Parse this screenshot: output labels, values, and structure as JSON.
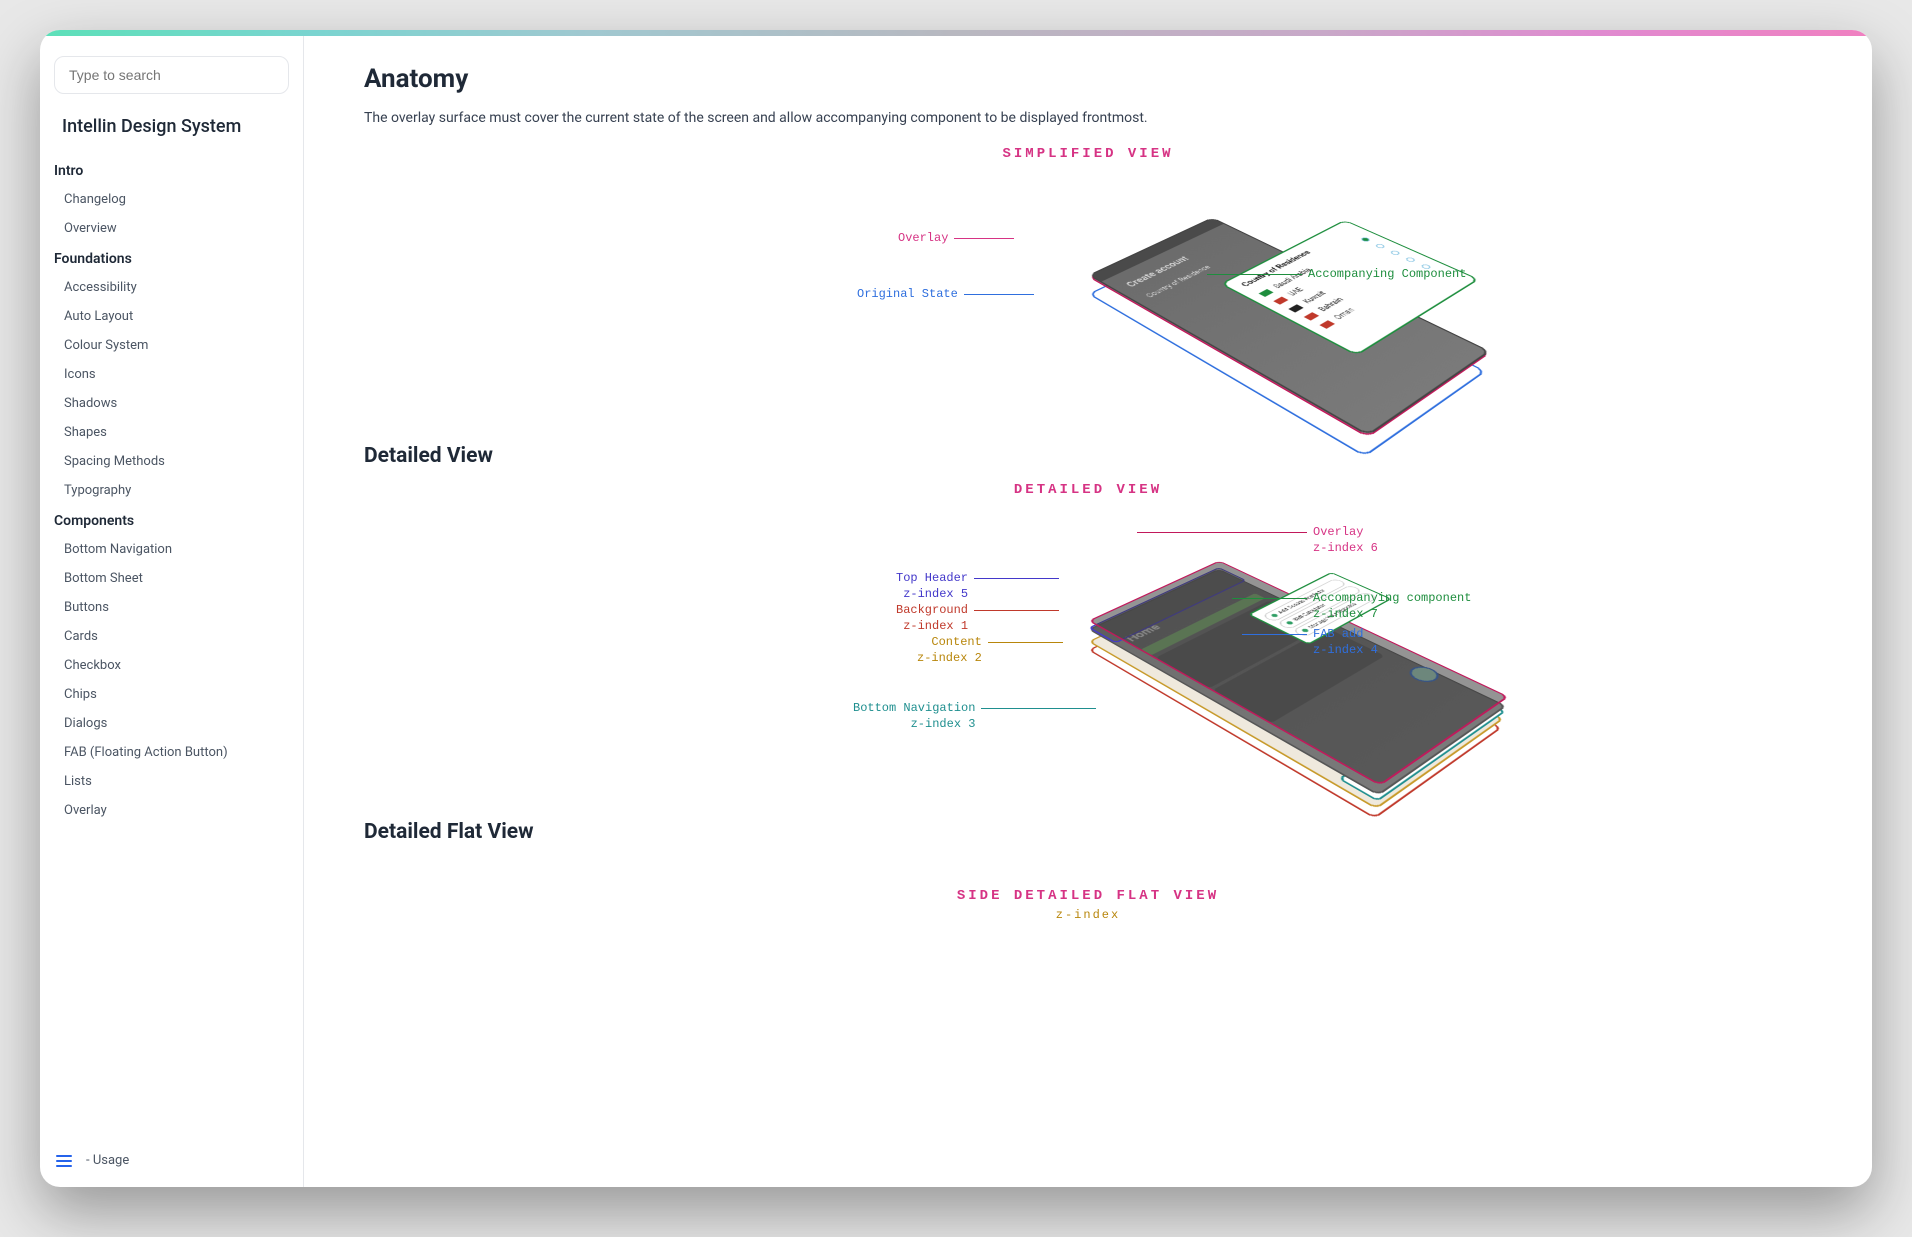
{
  "sidebar": {
    "search_placeholder": "Type to search",
    "brand": "Intellin Design System",
    "sections": [
      {
        "title": "Intro",
        "items": [
          "Changelog",
          "Overview"
        ]
      },
      {
        "title": "Foundations",
        "items": [
          "Accessibility",
          "Auto Layout",
          "Colour System",
          "Icons",
          "Shadows",
          "Shapes",
          "Spacing Methods",
          "Typography"
        ]
      },
      {
        "title": "Components",
        "items": [
          "Bottom Navigation",
          "Bottom Sheet",
          "Buttons",
          "Cards",
          "Checkbox",
          "Chips",
          "Dialogs",
          "FAB (Floating Action Button)",
          "Lists",
          "Overlay"
        ]
      }
    ],
    "sub_item": "- Usage"
  },
  "page": {
    "title": "Anatomy",
    "lead": "The overlay surface must cover the current state of the screen and allow accompanying component to be displayed frontmost.",
    "sections": {
      "simplified": {
        "label": "SIMPLIFIED VIEW",
        "label_color": "#d63384",
        "phone_title": "Create account",
        "phone_sub": "Country of Residence",
        "accomp_title": "Country of Residence",
        "countries": [
          {
            "name": "Saudi Arabia",
            "flag": "#1e8e3e"
          },
          {
            "name": "UAE",
            "flag": "#c0392b"
          },
          {
            "name": "Kuwait",
            "flag": "#222222"
          },
          {
            "name": "Bahrain",
            "flag": "#c0392b"
          },
          {
            "name": "Oman",
            "flag": "#c0392b"
          }
        ],
        "callouts": {
          "overlay": "Overlay",
          "original": "Original State",
          "accomp": "Accompanying Component"
        }
      },
      "detailed": {
        "heading": "Detailed View",
        "label": "DETAILED VIEW",
        "label_color": "#d63384",
        "home_text": "Home",
        "accomp_items": [
          "Add Dosage Reminder",
          "BMI Calculator",
          "Manage Your Diabetes"
        ],
        "callouts": {
          "top_header": {
            "text": "Top Header",
            "sub": "z-index 5",
            "color": "#4338ca"
          },
          "background": {
            "text": "Background",
            "sub": "z-index 1",
            "color": "#c0392b"
          },
          "content": {
            "text": "Content",
            "sub": "z-index 2",
            "color": "#b8860b"
          },
          "bottom_nav": {
            "text": "Bottom Navigation",
            "sub": "z-index 3",
            "color": "#1f8f8f"
          },
          "overlay": {
            "text": "Overlay",
            "sub": "z-index 6",
            "color": "#c2185b"
          },
          "accomp": {
            "text": "Accompanying component",
            "sub": "z-index 7",
            "color": "#1e8e3e"
          },
          "fab": {
            "text": "FAB add",
            "sub": "z-index 4",
            "color": "#2f6fde"
          }
        }
      },
      "flat": {
        "heading": "Detailed Flat View",
        "label": "SIDE DETAILED FLAT VIEW",
        "label_color": "#d63384",
        "sub": "z-index",
        "sub_color": "#b8860b"
      }
    }
  },
  "colors": {
    "gradient": [
      "#5ce0b8",
      "#f080c0"
    ],
    "text_primary": "#1f2937",
    "text_secondary": "#4b5563",
    "border": "#e5e7eb"
  }
}
